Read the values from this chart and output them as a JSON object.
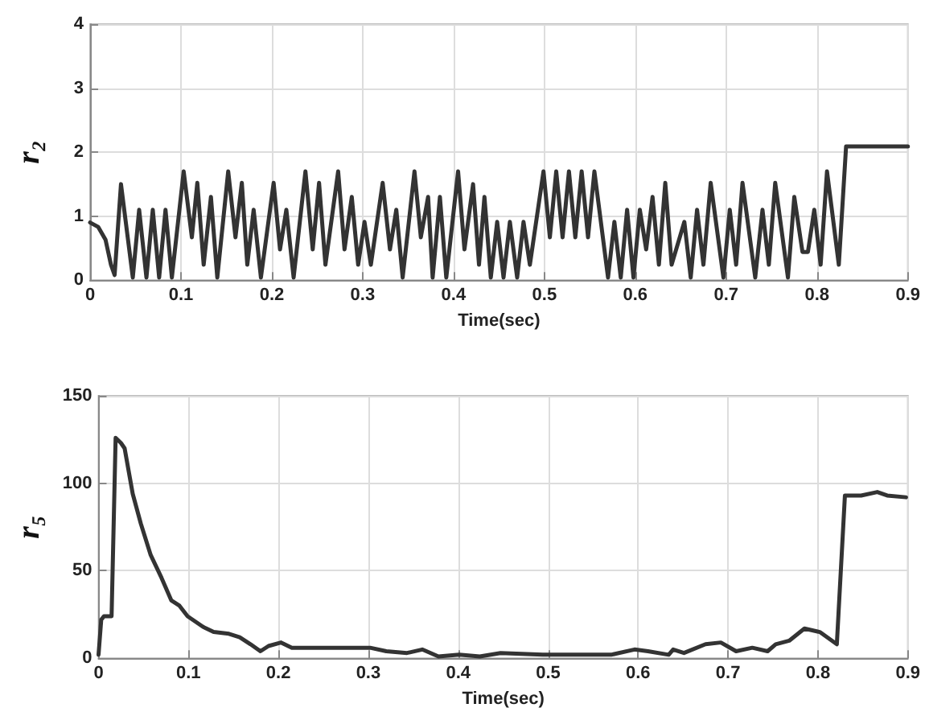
{
  "chart_data": [
    {
      "type": "line",
      "xlabel": "Time(sec)",
      "ylabel": "r₂",
      "xlim": [
        0,
        0.9
      ],
      "xticks": [
        0,
        0.1,
        0.2,
        0.3,
        0.4,
        0.5,
        0.6,
        0.7,
        0.8,
        0.9
      ],
      "ylim": [
        0,
        4
      ],
      "yticks": [
        0,
        1,
        2,
        3,
        4
      ],
      "grid": true,
      "marker": "none",
      "series": [
        {
          "color": "#333333",
          "x": [
            0,
            0.009,
            0.017,
            0.023,
            0.027,
            0.034,
            0.047,
            0.054,
            0.062,
            0.069,
            0.076,
            0.083,
            0.09,
            0.103,
            0.112,
            0.118,
            0.125,
            0.133,
            0.14,
            0.152,
            0.16,
            0.167,
            0.173,
            0.18,
            0.188,
            0.202,
            0.209,
            0.216,
            0.224,
            0.237,
            0.245,
            0.252,
            0.259,
            0.273,
            0.28,
            0.288,
            0.295,
            0.302,
            0.309,
            0.322,
            0.33,
            0.337,
            0.344,
            0.357,
            0.364,
            0.372,
            0.377,
            0.385,
            0.392,
            0.405,
            0.412,
            0.4215,
            0.428,
            0.434,
            0.441,
            0.448,
            0.455,
            0.462,
            0.47,
            0.477,
            0.484,
            0.499,
            0.506,
            0.513,
            0.52,
            0.527,
            0.534,
            0.541,
            0.548,
            0.555,
            0.57,
            0.577,
            0.584,
            0.591,
            0.598,
            0.605,
            0.612,
            0.619,
            0.626,
            0.633,
            0.64,
            0.654,
            0.661,
            0.668,
            0.675,
            0.683,
            0.697,
            0.704,
            0.711,
            0.718,
            0.732,
            0.74,
            0.747,
            0.754,
            0.768,
            0.775,
            0.784,
            0.79,
            0.797,
            0.804,
            0.811,
            0.824,
            0.832,
            0.9
          ],
          "values": [
            0.9,
            0.83,
            0.63,
            0.24,
            0.08,
            1.5,
            0.04,
            1.1,
            0.04,
            1.1,
            0.04,
            1.1,
            0.04,
            1.7,
            0.67,
            1.52,
            0.24,
            1.3,
            0.04,
            1.7,
            0.67,
            1.52,
            0.24,
            1.1,
            0.04,
            1.52,
            0.48,
            1.1,
            0.04,
            1.7,
            0.48,
            1.52,
            0.24,
            1.7,
            0.48,
            1.3,
            0.24,
            0.91,
            0.24,
            1.52,
            0.48,
            1.1,
            0.04,
            1.7,
            0.67,
            1.3,
            0.04,
            1.3,
            0.04,
            1.7,
            0.48,
            1.5,
            0.24,
            1.3,
            0.04,
            0.91,
            0.04,
            0.91,
            0.04,
            0.91,
            0.24,
            1.7,
            0.67,
            1.7,
            0.67,
            1.7,
            0.67,
            1.7,
            0.67,
            1.7,
            0.04,
            0.91,
            0.04,
            1.1,
            0.04,
            1.1,
            0.48,
            1.3,
            0.24,
            1.52,
            0.24,
            0.91,
            0.04,
            1.1,
            0.24,
            1.52,
            0.04,
            1.1,
            0.24,
            1.52,
            0.04,
            1.1,
            0.24,
            1.52,
            0.04,
            1.3,
            0.44,
            0.44,
            1.1,
            0.24,
            1.7,
            0.24,
            2.09,
            2.09
          ]
        }
      ]
    },
    {
      "type": "line",
      "xlabel": "Time(sec)",
      "ylabel": "r₅",
      "xlim": [
        0,
        0.9
      ],
      "xticks": [
        0,
        0.1,
        0.2,
        0.3,
        0.4,
        0.5,
        0.6,
        0.7,
        0.8,
        0.9
      ],
      "ylim": [
        0,
        150
      ],
      "yticks": [
        0,
        50,
        100,
        150
      ],
      "grid": true,
      "marker": "none",
      "series": [
        {
          "color": "#333333",
          "x": [
            0,
            0.003,
            0.006,
            0.0145,
            0.019,
            0.025,
            0.029,
            0.038,
            0.047,
            0.058,
            0.07,
            0.081,
            0.09,
            0.099,
            0.116,
            0.128,
            0.145,
            0.157,
            0.169,
            0.18,
            0.189,
            0.203,
            0.215,
            0.238,
            0.262,
            0.279,
            0.302,
            0.32,
            0.343,
            0.36,
            0.378,
            0.401,
            0.424,
            0.447,
            0.494,
            0.54,
            0.57,
            0.596,
            0.611,
            0.634,
            0.639,
            0.651,
            0.675,
            0.692,
            0.709,
            0.727,
            0.744,
            0.753,
            0.768,
            0.785,
            0.802,
            0.821,
            0.83,
            0.848,
            0.866,
            0.877,
            0.898
          ],
          "values": [
            2,
            22,
            24,
            24,
            126,
            123,
            120,
            94,
            77,
            59,
            46,
            33,
            30,
            24,
            18,
            15,
            14,
            12,
            8,
            4,
            7,
            9,
            6,
            6,
            6,
            6,
            6,
            4,
            3,
            5,
            1,
            2,
            1,
            3,
            2,
            2,
            2,
            5,
            4,
            2,
            5,
            3,
            8,
            9,
            4,
            6,
            4,
            8,
            10,
            17,
            15,
            8,
            93,
            93,
            95,
            93,
            92
          ]
        }
      ]
    }
  ]
}
